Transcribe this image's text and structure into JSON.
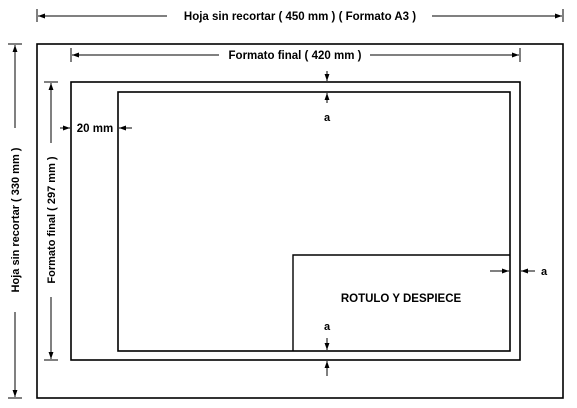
{
  "dimensions": {
    "untrimmed_width": "Hoja sin recortar ( 450 mm ) ( Formato A3 )",
    "untrimmed_height": "Hoja sin recortar ( 330 mm )",
    "final_width": "Formato final ( 420 mm )",
    "final_height": "Formato final ( 297 mm )",
    "margin_left": "20 mm"
  },
  "labels": {
    "margin_a_top": "a",
    "margin_a_right": "a",
    "margin_a_bottom": "a",
    "title_block": "ROTULO Y DESPIECE"
  },
  "colors": {
    "line": "#000000",
    "background": "#ffffff"
  }
}
